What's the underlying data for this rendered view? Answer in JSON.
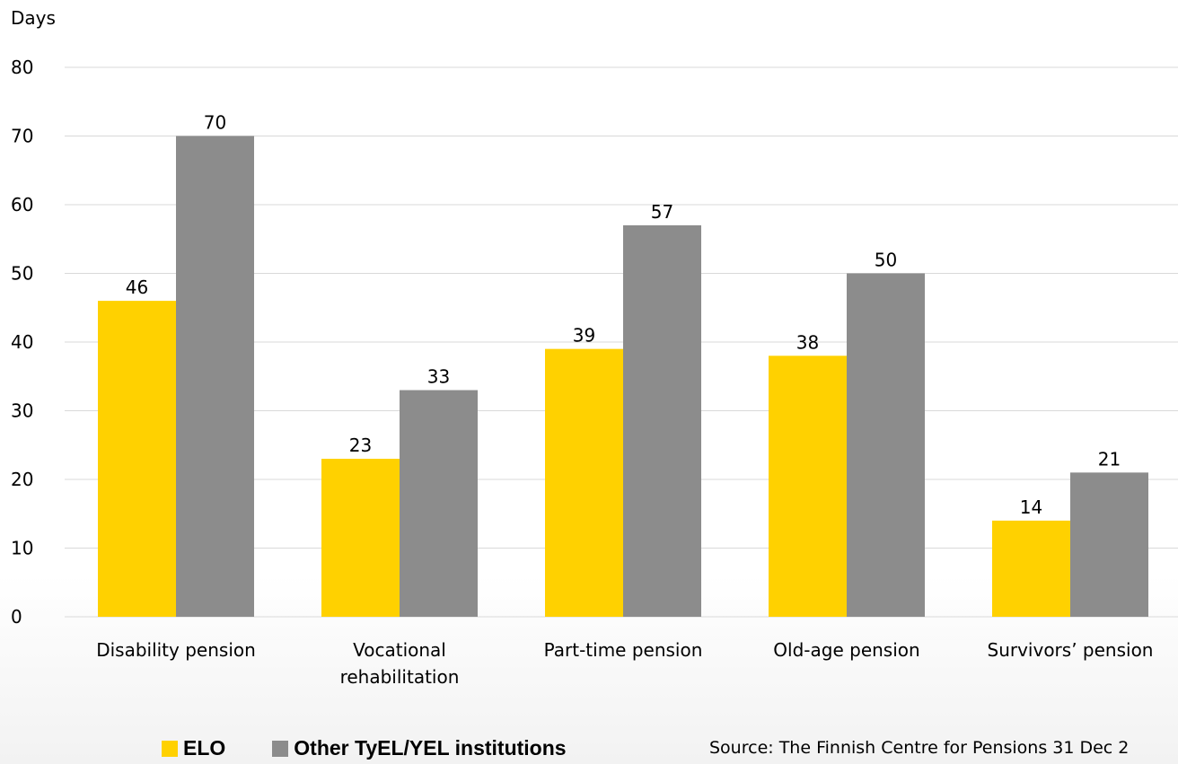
{
  "chart_data": {
    "type": "bar",
    "ylabel": "Days",
    "xlabel": "",
    "ylim": [
      0,
      80
    ],
    "yticks": [
      0,
      10,
      20,
      30,
      40,
      50,
      60,
      70,
      80
    ],
    "grid": true,
    "categories": [
      [
        "Disability pension"
      ],
      [
        "Vocational",
        "rehabilitation"
      ],
      [
        "Part-time pension"
      ],
      [
        "Old-age pension"
      ],
      [
        "Survivors’ pension"
      ]
    ],
    "series": [
      {
        "name": "ELO",
        "color": "#FFD100",
        "values": [
          46,
          23,
          39,
          38,
          14
        ]
      },
      {
        "name": "Other TyEL/YEL institutions",
        "color": "#8C8C8C",
        "values": [
          70,
          33,
          57,
          50,
          21
        ]
      }
    ],
    "legend_position": "bottom"
  },
  "footer": {
    "source": "Source: The Finnish Centre for Pensions 31 Dec 2"
  }
}
